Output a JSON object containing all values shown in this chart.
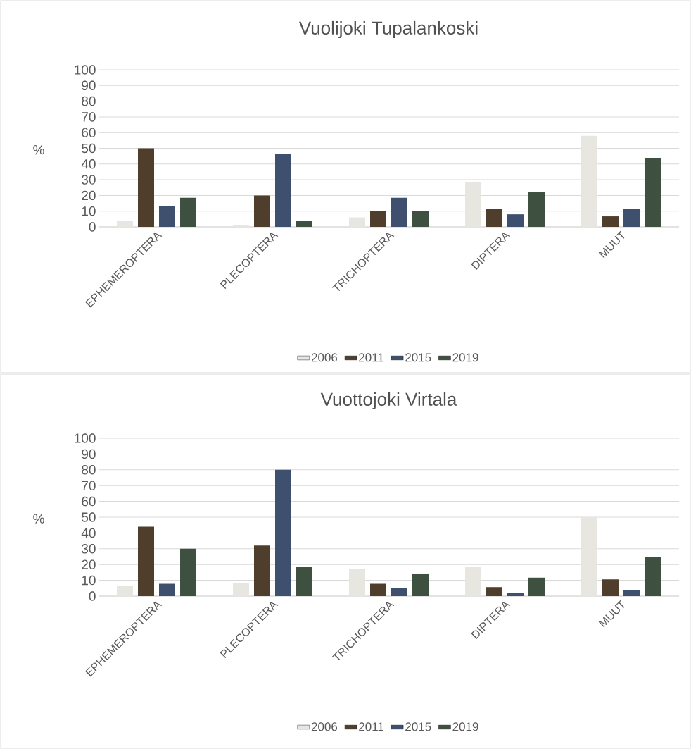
{
  "chart_data": [
    {
      "type": "bar",
      "title": "Vuolijoki Tupalankoski",
      "ylabel": "%",
      "categories": [
        "EPHEMEROPTERA",
        "PLECOPTERA",
        "TRICHOPTERA",
        "DIPTERA",
        "MUUT"
      ],
      "series": [
        {
          "name": "2006",
          "color": "#e7e6e1",
          "values": [
            4,
            1.3,
            6,
            28.5,
            58
          ]
        },
        {
          "name": "2011",
          "color": "#4f3e2c",
          "values": [
            50,
            20,
            10,
            11.5,
            6.7
          ]
        },
        {
          "name": "2015",
          "color": "#3f4f6e",
          "values": [
            13,
            46.5,
            18.5,
            8,
            11.5
          ]
        },
        {
          "name": "2019",
          "color": "#3e5040",
          "values": [
            18.5,
            4,
            10,
            22,
            44
          ]
        }
      ],
      "ylim": [
        0,
        100
      ],
      "yticks": [
        0,
        10,
        20,
        30,
        40,
        50,
        60,
        70,
        80,
        90,
        100
      ],
      "grid": "y",
      "legend": "bottom"
    },
    {
      "type": "bar",
      "title": "Vuottojoki Virtala",
      "ylabel": "%",
      "categories": [
        "EPHEMEROPTERA",
        "PLECOPTERA",
        "TRICHOPTERA",
        "DIPTERA",
        "MUUT"
      ],
      "series": [
        {
          "name": "2006",
          "color": "#e7e6e1",
          "values": [
            6.3,
            8.4,
            17,
            18.5,
            50
          ]
        },
        {
          "name": "2011",
          "color": "#4f3e2c",
          "values": [
            44,
            32,
            7.8,
            5.7,
            10.6
          ]
        },
        {
          "name": "2015",
          "color": "#3f4f6e",
          "values": [
            7.8,
            80,
            5,
            2,
            4
          ]
        },
        {
          "name": "2019",
          "color": "#3e5040",
          "values": [
            30,
            18.7,
            14.3,
            11.7,
            25
          ]
        }
      ],
      "ylim": [
        0,
        100
      ],
      "yticks": [
        0,
        10,
        20,
        30,
        40,
        50,
        60,
        70,
        80,
        90,
        100
      ],
      "grid": "y",
      "legend": "bottom"
    }
  ]
}
